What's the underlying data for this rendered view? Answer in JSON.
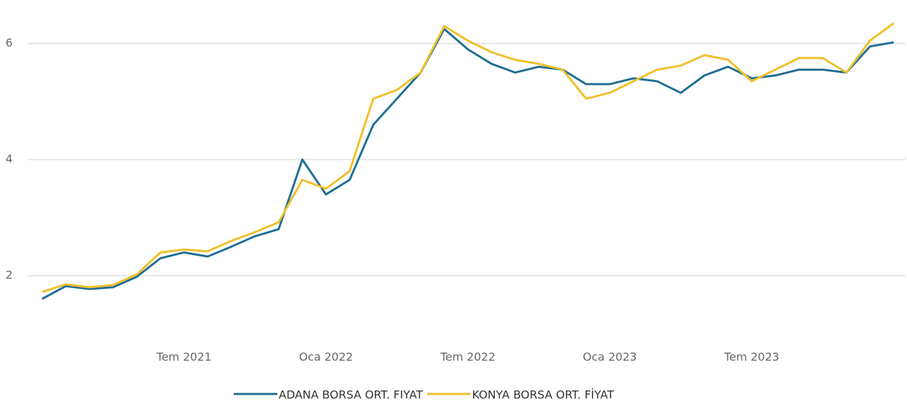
{
  "chart_data": {
    "type": "line",
    "x": [
      "2021-01",
      "2021-02",
      "2021-03",
      "2021-04",
      "2021-05",
      "2021-06",
      "2021-07",
      "2021-08",
      "2021-09",
      "2021-10",
      "2021-11",
      "2021-12",
      "2022-01",
      "2022-02",
      "2022-03",
      "2022-04",
      "2022-05",
      "2022-06",
      "2022-07",
      "2022-08",
      "2022-09",
      "2022-10",
      "2022-11",
      "2022-12",
      "2023-01",
      "2023-02",
      "2023-03",
      "2023-04",
      "2023-05",
      "2023-06",
      "2023-07",
      "2023-08",
      "2023-09",
      "2023-10",
      "2023-11",
      "2023-12",
      "2024-01"
    ],
    "series": [
      {
        "name": "ADANA BORSA ORT. FIYAT",
        "color": "#1f6f93",
        "values": [
          1.6,
          1.82,
          1.77,
          1.8,
          1.98,
          2.3,
          2.4,
          2.33,
          2.5,
          2.68,
          2.8,
          4.0,
          3.4,
          3.65,
          4.6,
          5.05,
          5.5,
          6.25,
          5.9,
          5.65,
          5.5,
          5.6,
          5.55,
          5.3,
          5.3,
          5.4,
          5.35,
          5.15,
          5.45,
          5.6,
          5.4,
          5.45,
          5.55,
          5.55,
          5.5,
          5.95,
          6.02
        ]
      },
      {
        "name": "KONYA BORSA ORT. FİYAT",
        "color": "#f0bf2a",
        "values": [
          1.72,
          1.85,
          1.8,
          1.84,
          2.02,
          2.4,
          2.45,
          2.42,
          2.6,
          2.75,
          2.92,
          3.65,
          3.5,
          3.8,
          5.05,
          5.2,
          5.5,
          6.3,
          6.05,
          5.85,
          5.72,
          5.65,
          5.55,
          5.05,
          5.15,
          5.35,
          5.55,
          5.62,
          5.8,
          5.72,
          5.35,
          5.55,
          5.75,
          5.75,
          5.5,
          6.05,
          6.35
        ]
      }
    ],
    "xlim": [
      "2021-01",
      "2024-01"
    ],
    "xticks": [
      {
        "value": "2021-07",
        "label": "Tem 2021"
      },
      {
        "value": "2022-01",
        "label": "Oca 2022"
      },
      {
        "value": "2022-07",
        "label": "Tem 2022"
      },
      {
        "value": "2023-01",
        "label": "Oca 2023"
      },
      {
        "value": "2023-07",
        "label": "Tem 2023"
      }
    ],
    "ylim": [
      1,
      6.75
    ],
    "yticks": [
      2,
      4,
      6
    ],
    "grid": true,
    "legend": "bottom"
  }
}
